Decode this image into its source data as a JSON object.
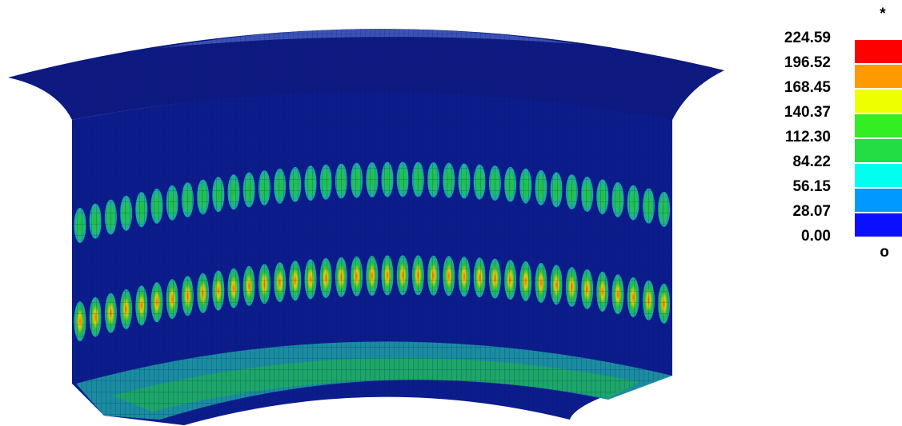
{
  "legend": {
    "title": "*",
    "labels": [
      "224.59",
      "196.52",
      "168.45",
      "140.37",
      "112.30",
      "84.22",
      "56.15",
      "28.07",
      "0.00"
    ],
    "colors": [
      "#ff0000",
      "#ff9900",
      "#eeff00",
      "#33ee22",
      "#22dd44",
      "#00ffee",
      "#0099ff",
      "#0a10ff"
    ],
    "footer": "o"
  }
}
